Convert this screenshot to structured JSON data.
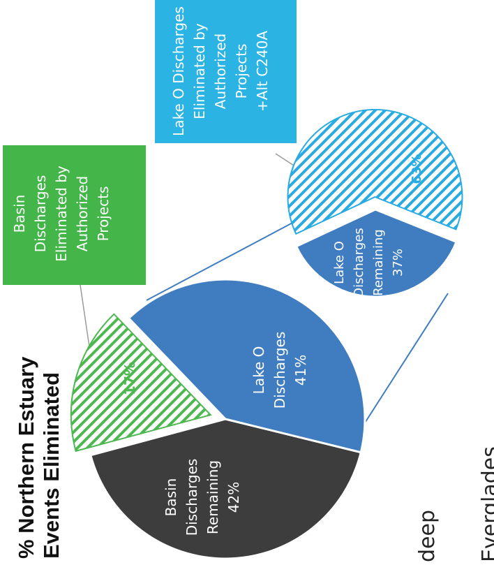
{
  "chart_data": [
    {
      "type": "pie",
      "title": "% Northern Estuary\nEvents Eliminated",
      "slices": [
        {
          "label": "Basin Discharges Remaining",
          "value": 42,
          "display": "42%",
          "color": "#3d3d3d",
          "pattern": "solid"
        },
        {
          "label": "Lake O Discharges",
          "value": 41,
          "display": "41%",
          "color": "#3f7cc0",
          "pattern": "solid"
        },
        {
          "label": "Basin Discharges Eliminated by Authorized Projects",
          "value": 17,
          "display": "17%",
          "color": "#4cb84f",
          "pattern": "hatched"
        }
      ]
    },
    {
      "type": "pie",
      "title": "",
      "slices": [
        {
          "label": "Lake O Discharges Remaining",
          "value": 37,
          "display": "37%",
          "color": "#3f7cc0",
          "pattern": "solid"
        },
        {
          "label": "Lake O Discharges Eliminated by Authorized Projects +Alt C240A",
          "value": 63,
          "display": "63%",
          "color": "#29abe2",
          "pattern": "hatched"
        }
      ]
    }
  ],
  "text": {
    "title": "% Northern Estuary\nEvents Eliminated",
    "green_callout": "Basin\nDischarges\nEliminated by\nAuthorized\nProjects",
    "blue_callout": "Lake O Discharges\nEliminated by\nAuthorized\nProjects\n+Alt C240A",
    "slice_basin_remaining": "Basin\nDischarges\nRemaining\n42%",
    "slice_lake_o": "Lake O\nDischarges\n41%",
    "slice_basin_eliminated": "17%",
    "slice_lake_o_remaining": "Lake O\nDischarges\nRemaining\n37%",
    "slice_lake_o_eliminated": "63%",
    "cut_word_1": "deep",
    "cut_word_2": "Everglades"
  },
  "colors": {
    "dark_gray": "#3d3d3d",
    "steel_blue": "#3f7cc0",
    "green": "#4cb84f",
    "cyan": "#29abe2",
    "callout_green": "#44b549",
    "callout_blue": "#2ab3e3"
  }
}
